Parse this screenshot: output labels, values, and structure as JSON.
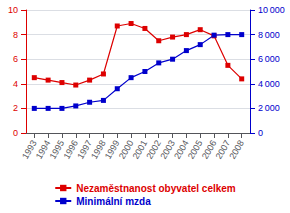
{
  "chart_data": {
    "type": "line",
    "x": [
      1993,
      1994,
      1995,
      1996,
      1997,
      1998,
      1999,
      2000,
      2001,
      2002,
      2003,
      2004,
      2005,
      2006,
      2007,
      2008
    ],
    "xlim": [
      1992.4,
      2008.6
    ],
    "xticks": [
      1993,
      1994,
      1995,
      1996,
      1997,
      1998,
      1999,
      2000,
      2001,
      2002,
      2003,
      2004,
      2005,
      2006,
      2007,
      2008
    ],
    "ylim": [
      0,
      10
    ],
    "yticks": [
      0,
      2,
      4,
      6,
      8,
      10
    ],
    "y2lim": [
      0,
      10000
    ],
    "y2ticks": [
      0,
      {
        "value": 2000,
        "label": "2 000"
      },
      {
        "value": 4000,
        "label": "4 000"
      },
      {
        "value": 6000,
        "label": "6 000"
      },
      {
        "value": 8000,
        "label": "8 000"
      },
      {
        "value": 10000,
        "label": "10 000"
      }
    ],
    "grid": true,
    "legend": "bottom",
    "series": [
      {
        "name": "Nezaměstnanost obyvatel celkem",
        "color": "#dd0000",
        "marker": "square",
        "values": [
          4.5,
          4.3,
          4.1,
          3.9,
          4.3,
          4.8,
          8.7,
          8.9,
          8.5,
          7.5,
          7.8,
          8.0,
          8.4,
          7.9,
          5.5,
          4.4
        ]
      },
      {
        "name": "Minimální mzda",
        "color": "#0000cc",
        "marker": "square",
        "axis": "y2",
        "values": [
          2000,
          2000,
          2000,
          2200,
          2500,
          2650,
          3600,
          4500,
          5000,
          5700,
          6000,
          6700,
          7185,
          7955,
          8000,
          8000
        ]
      }
    ]
  }
}
